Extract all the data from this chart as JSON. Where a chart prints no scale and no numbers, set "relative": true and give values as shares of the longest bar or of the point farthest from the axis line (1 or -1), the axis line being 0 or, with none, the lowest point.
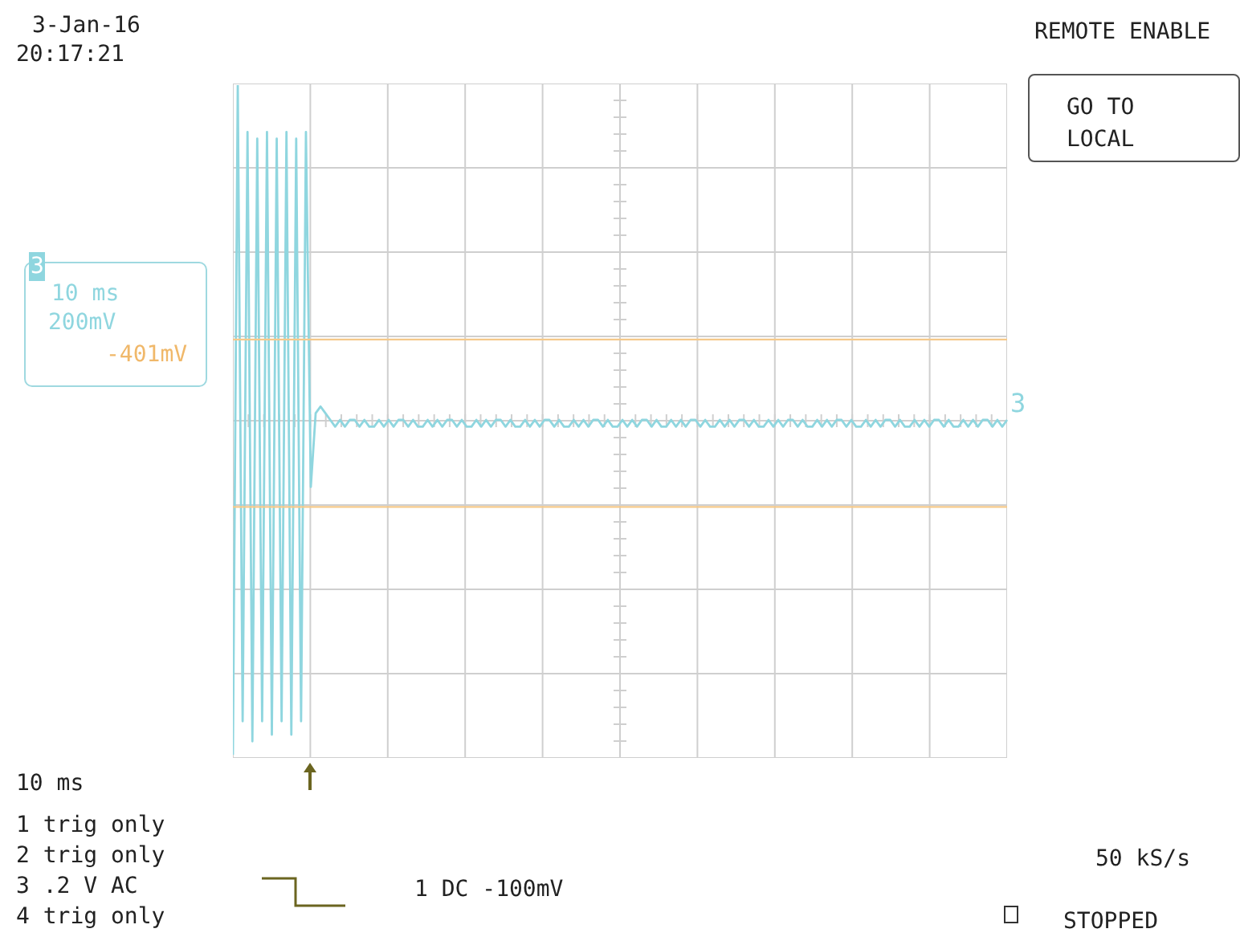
{
  "chart_data": {
    "type": "line",
    "relative": true,
    "grid": true,
    "categories": [
      null,
      null,
      null,
      null,
      null,
      null,
      null,
      null,
      null,
      null,
      null,
      null,
      null,
      null,
      null,
      null,
      null,
      null,
      null,
      null,
      null,
      null,
      null,
      null,
      null,
      null,
      null,
      null,
      null,
      null,
      null,
      null,
      null,
      null,
      null,
      null,
      null,
      null,
      null,
      null,
      null,
      null,
      null,
      null,
      null,
      null,
      null,
      null,
      null,
      null,
      null,
      null,
      null,
      null,
      null,
      null,
      null,
      null,
      null,
      null,
      null,
      null,
      null,
      null,
      null,
      null,
      null,
      null,
      null,
      null,
      null,
      null,
      null,
      null,
      null,
      null,
      null,
      null,
      null,
      null,
      null,
      null,
      null,
      null,
      null,
      null,
      null,
      null,
      null,
      null,
      null,
      null,
      null,
      null,
      null,
      null,
      null,
      null,
      null,
      null,
      null,
      null,
      null,
      null,
      null,
      null,
      null,
      null,
      null,
      null,
      null,
      null,
      null,
      null,
      null,
      null,
      null,
      null,
      null,
      null,
      null,
      null,
      null,
      null,
      null,
      null,
      null,
      null,
      null,
      null,
      null,
      null,
      null,
      null,
      null,
      null,
      null,
      null,
      null,
      null,
      null,
      null,
      null,
      null,
      null,
      null,
      null,
      null,
      null,
      null,
      null,
      null,
      null,
      null,
      null,
      null,
      null,
      null,
      null,
      null
    ],
    "series": [
      {
        "name": "3",
        "color": "#8fd6df",
        "values": [
          0.0,
          1.0,
          0.05,
          0.93,
          0.02,
          0.92,
          0.05,
          0.93,
          0.03,
          0.92,
          0.05,
          0.93,
          0.03,
          0.92,
          0.05,
          0.93,
          0.4,
          0.51,
          0.52,
          0.51,
          0.5,
          0.49,
          0.5,
          0.49,
          0.5,
          0.5,
          0.49,
          0.5,
          0.49,
          0.49,
          0.5,
          0.49,
          0.5,
          0.49,
          0.5,
          0.5,
          0.49,
          0.5,
          0.49,
          0.49,
          0.5,
          0.49,
          0.5,
          0.49,
          0.5,
          0.5,
          0.49,
          0.5,
          0.49,
          0.49,
          0.5,
          0.49,
          0.5,
          0.49,
          0.5,
          0.5,
          0.49,
          0.5,
          0.49,
          0.49,
          0.5,
          0.49,
          0.5,
          0.49,
          0.5,
          0.5,
          0.49,
          0.5,
          0.49,
          0.49,
          0.5,
          0.49,
          0.5,
          0.49,
          0.5,
          0.5,
          0.49,
          0.5,
          0.49,
          0.49,
          0.5,
          0.49,
          0.5,
          0.49,
          0.5,
          0.5,
          0.49,
          0.5,
          0.49,
          0.49,
          0.5,
          0.49,
          0.5,
          0.49,
          0.5,
          0.5,
          0.49,
          0.5,
          0.49,
          0.49,
          0.5,
          0.49,
          0.5,
          0.49,
          0.5,
          0.5,
          0.49,
          0.5,
          0.49,
          0.49,
          0.5,
          0.49,
          0.5,
          0.49,
          0.5,
          0.5,
          0.49,
          0.5,
          0.49,
          0.49,
          0.5,
          0.49,
          0.5,
          0.49,
          0.5,
          0.5,
          0.49,
          0.5,
          0.49,
          0.49,
          0.5,
          0.49,
          0.5,
          0.49,
          0.5,
          0.5,
          0.49,
          0.5,
          0.49,
          0.49,
          0.5,
          0.49,
          0.5,
          0.49,
          0.5,
          0.5,
          0.49,
          0.5,
          0.49,
          0.49,
          0.5,
          0.49,
          0.5,
          0.49,
          0.5,
          0.5,
          0.49,
          0.5,
          0.49,
          0.5
        ]
      }
    ],
    "ref_lines": [
      {
        "axis": "y",
        "value": 0.62,
        "color": "#f5c98a"
      },
      {
        "axis": "y",
        "value": 0.37,
        "color": "#f5c98a"
      }
    ],
    "annotations": [
      "3-Jan-16",
      "20:17:21",
      "REMOTE ENABLE",
      "GO TO LOCAL",
      "3",
      "10 ms",
      "200mV",
      "-401mV",
      "10 ms",
      "1 trig only",
      "2 trig only",
      "3 .2 V AC",
      "4 trig only",
      "1 DC -100mV",
      "50 kS/s",
      "STOPPED"
    ]
  }
}
